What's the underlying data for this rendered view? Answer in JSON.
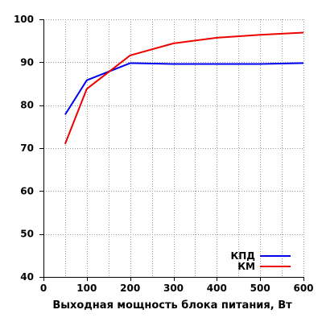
{
  "chart_data": {
    "type": "line",
    "xlabel": "Выходная мощность блока питания, Вт",
    "ylabel": "",
    "xlim": [
      0,
      600
    ],
    "ylim": [
      40,
      100
    ],
    "x_ticks": [
      0,
      100,
      200,
      300,
      400,
      500,
      600
    ],
    "y_ticks": [
      40,
      50,
      60,
      70,
      80,
      90,
      100
    ],
    "x_tick_labels": [
      "0",
      "100",
      "200",
      "300",
      "400",
      "500",
      "600"
    ],
    "y_tick_labels": [
      "40",
      "50",
      "60",
      "70",
      "80",
      "90",
      "100"
    ],
    "x_minor_step": 50,
    "grid": "dotted",
    "legend_position": "bottom-right",
    "series": [
      {
        "name": "КПД",
        "color": "#0000ee",
        "x": [
          50,
          100,
          200,
          300,
          400,
          500,
          600
        ],
        "y": [
          77.8,
          85.8,
          89.8,
          89.6,
          89.6,
          89.6,
          89.8
        ]
      },
      {
        "name": "КМ",
        "color": "#ee0000",
        "x": [
          50,
          100,
          200,
          300,
          400,
          500,
          600
        ],
        "y": [
          71.0,
          83.8,
          91.6,
          94.4,
          95.7,
          96.4,
          96.9
        ]
      }
    ]
  }
}
